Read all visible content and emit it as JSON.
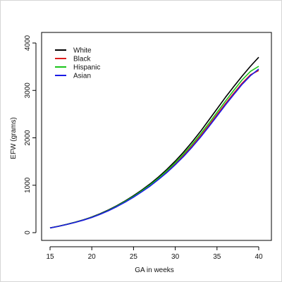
{
  "chart_data": {
    "type": "line",
    "xlabel": "GA in weeks",
    "ylabel": "EFW (grams)",
    "xlim": [
      15,
      40
    ],
    "ylim": [
      0,
      4000
    ],
    "x_ticks": [
      15,
      20,
      25,
      30,
      35,
      40
    ],
    "y_ticks": [
      0,
      1000,
      2000,
      3000,
      4000
    ],
    "grid": false,
    "legend_position": "top-left",
    "x": [
      15,
      16,
      17,
      18,
      19,
      20,
      21,
      22,
      23,
      24,
      25,
      26,
      27,
      28,
      29,
      30,
      31,
      32,
      33,
      34,
      35,
      36,
      37,
      38,
      39,
      40
    ],
    "series": [
      {
        "name": "White",
        "color": "#000000",
        "values": [
          100,
          135,
          175,
          220,
          270,
          330,
          400,
          480,
          570,
          670,
          780,
          900,
          1030,
          1175,
          1335,
          1510,
          1700,
          1910,
          2130,
          2370,
          2610,
          2850,
          3080,
          3300,
          3510,
          3700
        ]
      },
      {
        "name": "Black",
        "color": "#dd1c1c",
        "values": [
          100,
          134,
          173,
          217,
          266,
          322,
          390,
          467,
          553,
          650,
          755,
          870,
          995,
          1135,
          1285,
          1450,
          1630,
          1825,
          2035,
          2260,
          2490,
          2720,
          2940,
          3150,
          3330,
          3420
        ]
      },
      {
        "name": "Hispanic",
        "color": "#19c419",
        "values": [
          100,
          134,
          174,
          218,
          268,
          325,
          393,
          472,
          560,
          658,
          765,
          883,
          1010,
          1150,
          1305,
          1475,
          1660,
          1860,
          2075,
          2300,
          2535,
          2770,
          3000,
          3220,
          3400,
          3510
        ]
      },
      {
        "name": "Asian",
        "color": "#1a1ae6",
        "values": [
          100,
          133,
          172,
          216,
          265,
          320,
          387,
          463,
          548,
          644,
          748,
          862,
          985,
          1122,
          1270,
          1432,
          1608,
          1800,
          2008,
          2230,
          2460,
          2690,
          2910,
          3125,
          3310,
          3450
        ]
      }
    ]
  }
}
